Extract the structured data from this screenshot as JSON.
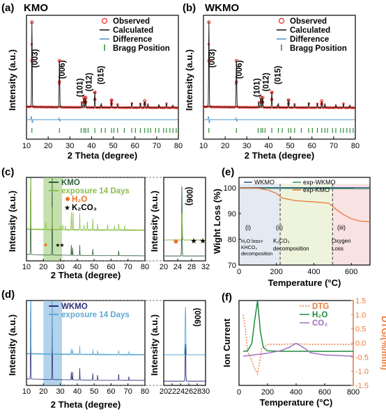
{
  "panels": {
    "a": {
      "letter": "(a)",
      "title": "KMO",
      "ylabel": "Intensity (a.u.)",
      "xlabel": "2 Theta (degree)",
      "ticks": [
        "10",
        "20",
        "30",
        "40",
        "50",
        "60",
        "70",
        "80"
      ],
      "legend": [
        "Observed",
        "Calculated",
        "Difference",
        "Bragg Position"
      ],
      "peaks": [
        "(003)",
        "(006)",
        "(101)",
        "(012)",
        "(015)"
      ]
    },
    "b": {
      "letter": "(b)",
      "title": "WKMO",
      "ylabel": "Intensity (a.u.)",
      "xlabel": "2 Theta (degree)",
      "ticks": [
        "10",
        "20",
        "30",
        "40",
        "50",
        "60",
        "70",
        "80"
      ],
      "legend": [
        "Observed",
        "Calculated",
        "Difference",
        "Bragg Position"
      ],
      "peaks": [
        "(003)",
        "(006)",
        "(101)",
        "(012)",
        "(015)"
      ]
    },
    "c": {
      "letter": "(c)",
      "ylabel": "Intensity (a.u.)",
      "xlabel": "2 Theta (degree)",
      "ticks": [
        "10",
        "20",
        "30",
        "40",
        "50",
        "60",
        "70",
        "80"
      ],
      "legend": [
        "KMO",
        "exposure 14 Days",
        "H₂O",
        "K₂CO₃"
      ],
      "zoom_ylabel": "Intensity (a.u.)",
      "zoom_ticks": [
        "20",
        "24",
        "28",
        "32"
      ],
      "zoom_peak": "(006)"
    },
    "d": {
      "letter": "(d)",
      "ylabel": "Intensity (a.u.)",
      "xlabel": "2 Theta (degree)",
      "ticks": [
        "10",
        "20",
        "30",
        "40",
        "50",
        "60",
        "70",
        "80"
      ],
      "legend": [
        "WKMO",
        "exposure 14 Days"
      ],
      "zoom_ylabel": "Intensity (a.u.)",
      "zoom_ticks": [
        "20",
        "22",
        "24",
        "26",
        "28",
        "30"
      ],
      "zoom_peak": "(006)"
    },
    "e": {
      "letter": "(e)",
      "ylabel": "Wight Loss (%)",
      "xlabel": "Temperature (°C)",
      "xticks": [
        "0",
        "200",
        "400",
        "600"
      ],
      "yticks": [
        "70",
        "80",
        "90",
        "100"
      ],
      "legend": [
        "WKMO",
        "exp-WKMO",
        "exp-KMO"
      ],
      "regions": [
        {
          "roman": "(i)",
          "line1": "H₂O loss+",
          "line2": "KHCO₃",
          "line3": "decomposition"
        },
        {
          "roman": "(ii)",
          "line1": "K₂CO₃",
          "line2": "decomposition"
        },
        {
          "roman": "(iii)",
          "line1": "Oxygen",
          "line2": "Loss"
        }
      ]
    },
    "f": {
      "letter": "(f)",
      "ylabel": "Ion Current",
      "y2label": "DTG/(%/min)",
      "xlabel": "Temperature (°C)",
      "xticks": [
        "0",
        "200",
        "400",
        "600",
        "800"
      ],
      "y2ticks": [
        "1.5",
        "1.0",
        "0.5",
        "0.0",
        "-0.5",
        "-1.0",
        "-1.5"
      ],
      "legend": [
        "DTG",
        "H₂O",
        "CO₂"
      ]
    }
  },
  "colors": {
    "observed": "#e8261e",
    "calculated": "#111111",
    "difference": "#4a90c4",
    "bragg": "#2e8b3a",
    "kmo": "#2f5f3a",
    "exposed": "#8bbf4a",
    "highlight_c": "#9fcc7a",
    "h2o": "#e8742a",
    "wkmo": "#2c2f7a",
    "exposed_d": "#5fa8d3",
    "highlight_d": "#7fb6dd",
    "region1": "#e4eaf2",
    "region2": "#eef3dc",
    "region3": "#f9e2e2",
    "tga_wkmo": "#2a4f8a",
    "tga_expw": "#3a8a5a",
    "tga_expk": "#ea7a3a",
    "ms_h2o": "#1f8a3a",
    "ms_co2": "#a070c0",
    "dtg": "#ea7a3a"
  },
  "chart_data": [
    {
      "type": "line",
      "panel": "a",
      "title": "KMO",
      "xlabel": "2 Theta (degree)",
      "ylabel": "Intensity (a.u.)",
      "xlim": [
        10,
        80
      ],
      "series": [
        {
          "name": "Observed"
        },
        {
          "name": "Calculated"
        },
        {
          "name": "Difference"
        },
        {
          "name": "Bragg Position"
        }
      ],
      "peak_positions": [
        {
          "label": "(003)",
          "x": 12.5
        },
        {
          "label": "(006)",
          "x": 25.2
        },
        {
          "label": "(101)",
          "x": 36.5
        },
        {
          "label": "(012)",
          "x": 37.3
        },
        {
          "label": "(015)",
          "x": 41.5
        }
      ]
    },
    {
      "type": "line",
      "panel": "b",
      "title": "WKMO",
      "xlabel": "2 Theta (degree)",
      "ylabel": "Intensity (a.u.)",
      "xlim": [
        10,
        80
      ],
      "series": [
        {
          "name": "Observed"
        },
        {
          "name": "Calculated"
        },
        {
          "name": "Difference"
        },
        {
          "name": "Bragg Position"
        }
      ],
      "peak_positions": [
        {
          "label": "(003)",
          "x": 12.5
        },
        {
          "label": "(006)",
          "x": 25.2
        },
        {
          "label": "(101)",
          "x": 36.5
        },
        {
          "label": "(012)",
          "x": 37.3
        },
        {
          "label": "(015)",
          "x": 41.5
        }
      ]
    },
    {
      "type": "line",
      "panel": "c",
      "xlabel": "2 Theta (degree)",
      "ylabel": "Intensity (a.u.)",
      "xlim": [
        10,
        80
      ],
      "series": [
        {
          "name": "KMO"
        },
        {
          "name": "exposure 14 Days"
        }
      ],
      "zoom": {
        "xlim": [
          20,
          32
        ],
        "peak": "(006)",
        "peak_x": 25.2
      }
    },
    {
      "type": "line",
      "panel": "d",
      "xlabel": "2 Theta (degree)",
      "ylabel": "Intensity (a.u.)",
      "xlim": [
        10,
        80
      ],
      "series": [
        {
          "name": "WKMO"
        },
        {
          "name": "exposure 14 Days"
        }
      ],
      "zoom": {
        "xlim": [
          20,
          30
        ],
        "peak": "(006)",
        "peak_x": 25.2
      }
    },
    {
      "type": "line",
      "panel": "e",
      "xlabel": "Temperature (°C)",
      "ylabel": "Wight Loss (%)",
      "xlim": [
        0,
        700
      ],
      "ylim": [
        70,
        104
      ],
      "region_boundaries": [
        220,
        500
      ],
      "series": [
        {
          "name": "WKMO",
          "x": [
            0,
            700
          ],
          "y": [
            100,
            100
          ]
        },
        {
          "name": "exp-WKMO",
          "x": [
            0,
            700
          ],
          "y": [
            99.8,
            99.6
          ]
        },
        {
          "name": "exp-KMO",
          "x": [
            0,
            100,
            160,
            200,
            230,
            300,
            400,
            480,
            520,
            560,
            600,
            650,
            700
          ],
          "y": [
            100,
            99.8,
            99,
            97.8,
            96,
            95,
            94.5,
            94,
            91.5,
            89.5,
            88,
            87,
            86.8
          ]
        }
      ]
    },
    {
      "type": "line",
      "panel": "f",
      "xlabel": "Temperature (°C)",
      "ylabel": "Ion Current",
      "y2label": "DTG/(%/min)",
      "xlim": [
        0,
        800
      ],
      "y2lim": [
        -1.5,
        1.5
      ],
      "series": [
        {
          "name": "DTG",
          "x": [
            30,
            45,
            60,
            80,
            100,
            130,
            160,
            200,
            300,
            400,
            500,
            600,
            700,
            800
          ],
          "y": [
            1.0,
            0.5,
            -0.3,
            -0.5,
            -0.8,
            -1.1,
            -0.2,
            -0.05,
            -0.05,
            -0.03,
            -0.05,
            -0.05,
            -0.05,
            -0.05
          ]
        },
        {
          "name": "H₂O",
          "x": [
            30,
            60,
            90,
            110,
            130,
            150,
            170,
            200,
            300,
            800
          ],
          "y": [
            0.0,
            0.02,
            0.4,
            1.6,
            2.6,
            1.0,
            0.2,
            0.02,
            0.0,
            0.0
          ]
        },
        {
          "name": "CO₂",
          "x": [
            30,
            100,
            200,
            300,
            350,
            400,
            450,
            500,
            600,
            800
          ],
          "y": [
            0.0,
            0.02,
            0.05,
            0.1,
            0.15,
            0.22,
            0.15,
            0.06,
            0.02,
            0.0
          ]
        }
      ]
    }
  ]
}
